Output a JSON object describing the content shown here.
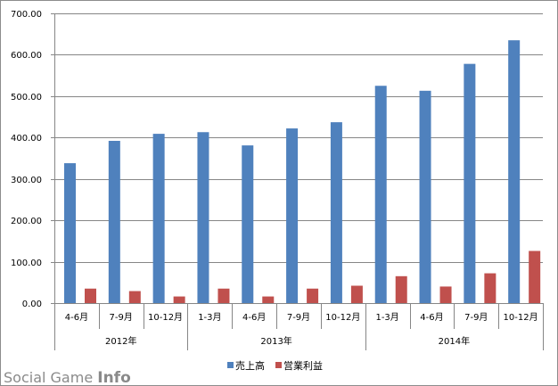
{
  "chart_data": {
    "type": "bar",
    "categories": [
      "4-6月",
      "7-9月",
      "10-12月",
      "1-3月",
      "4-6月",
      "7-9月",
      "10-12月",
      "1-3月",
      "4-6月",
      "7-9月",
      "10-12月"
    ],
    "groups": [
      {
        "label": "2012年",
        "count": 3
      },
      {
        "label": "2013年",
        "count": 4
      },
      {
        "label": "2014年",
        "count": 4
      }
    ],
    "series": [
      {
        "name": "売上高",
        "color": "#4f81bd",
        "values": [
          338,
          392,
          409,
          413,
          381,
          422,
          437,
          525,
          513,
          578,
          635
        ]
      },
      {
        "name": "営業利益",
        "color": "#c0504d",
        "values": [
          35,
          29,
          16,
          35,
          16,
          35,
          42,
          65,
          40,
          72,
          126
        ]
      }
    ],
    "y_ticks": [
      "0.00",
      "100.00",
      "200.00",
      "300.00",
      "400.00",
      "500.00",
      "600.00",
      "700.00"
    ],
    "ylim": [
      0,
      700
    ],
    "grid": true,
    "legend": "bottom"
  },
  "watermark": {
    "social": "Social Game ",
    "info": "Info"
  }
}
